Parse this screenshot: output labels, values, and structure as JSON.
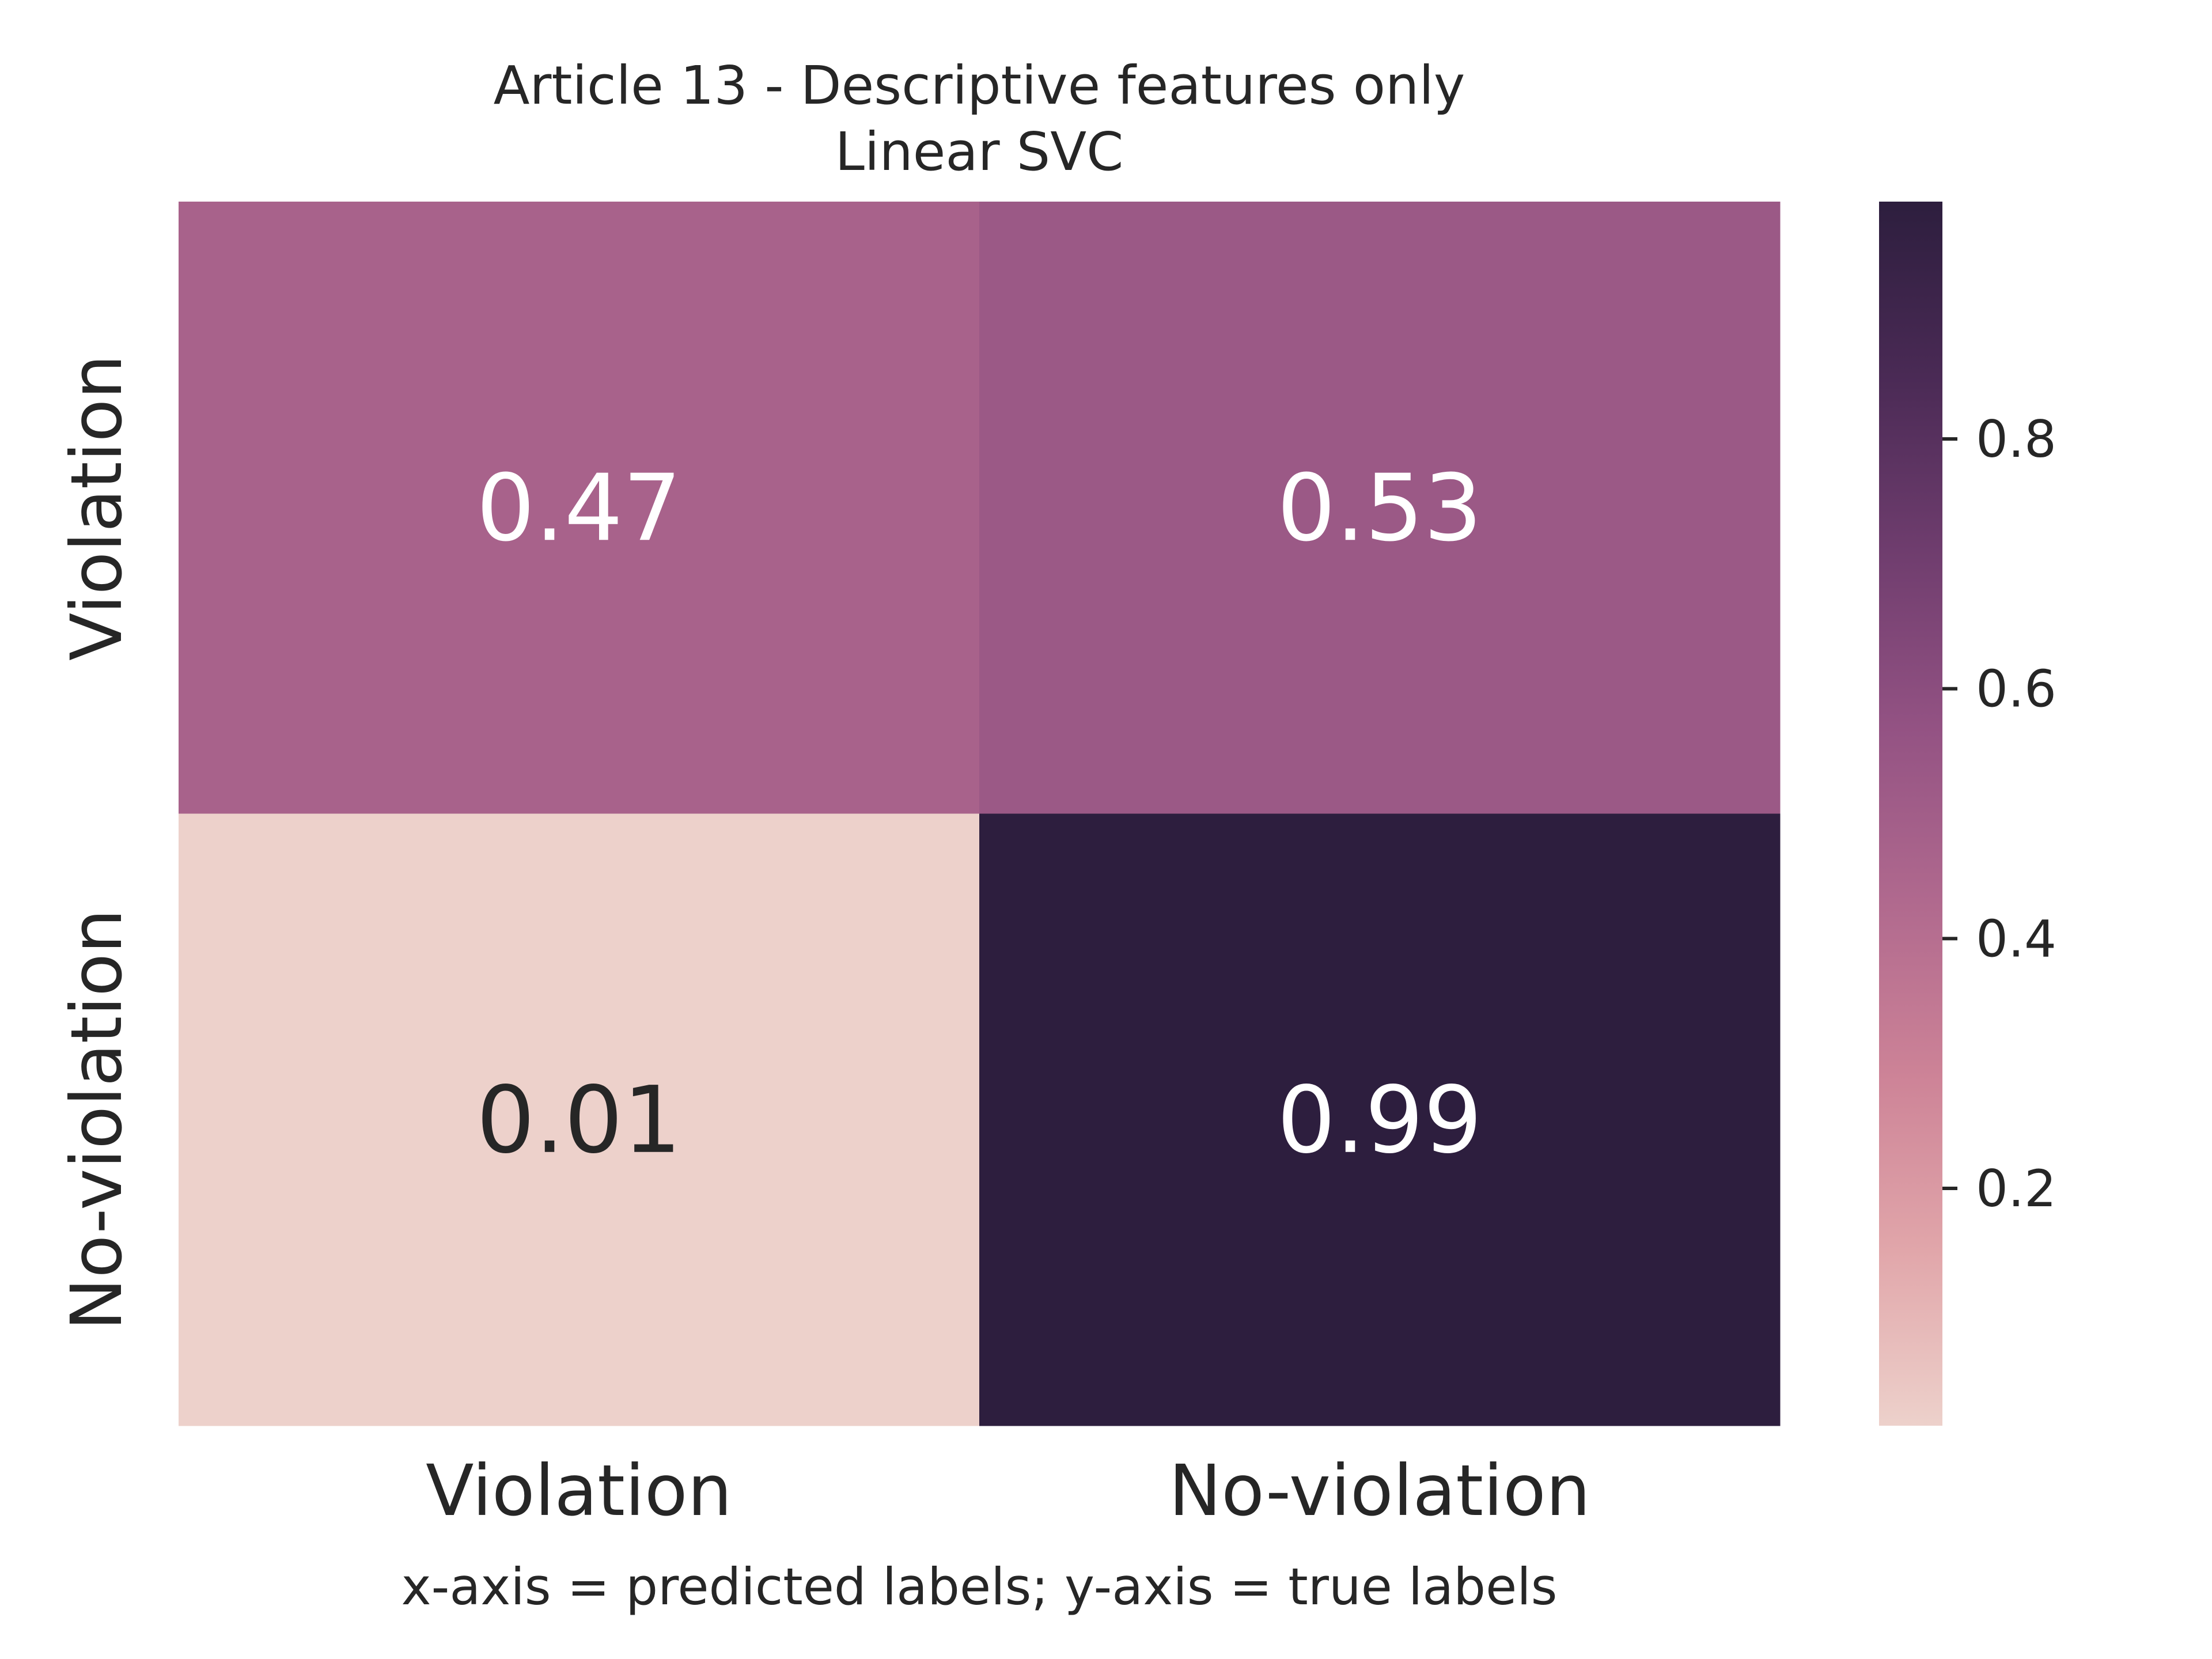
{
  "chart_data": {
    "type": "heatmap",
    "title": "Article 13 - Descriptive features only",
    "subtitle": "Linear SVC",
    "xlabel": "x-axis = predicted labels; y-axis = true labels",
    "ylabel": "",
    "x_categories": [
      "Violation",
      "No-violation"
    ],
    "y_categories": [
      "Violation",
      "No-violation"
    ],
    "values": [
      [
        0.47,
        0.53
      ],
      [
        0.01,
        0.99
      ]
    ],
    "value_labels": [
      [
        "0.47",
        "0.53"
      ],
      [
        "0.01",
        "0.99"
      ]
    ],
    "colorbar": {
      "range": [
        0.01,
        0.99
      ],
      "ticks": [
        0.2,
        0.4,
        0.6,
        0.8
      ],
      "tick_labels": [
        "0.2",
        "0.4",
        "0.6",
        "0.8"
      ],
      "colors": [
        "#edd1cb",
        "#e1a6aa",
        "#cd8397",
        "#b0698e",
        "#935283",
        "#6f3d6e",
        "#4a2a55",
        "#2d1e3e"
      ]
    },
    "grid": false
  }
}
